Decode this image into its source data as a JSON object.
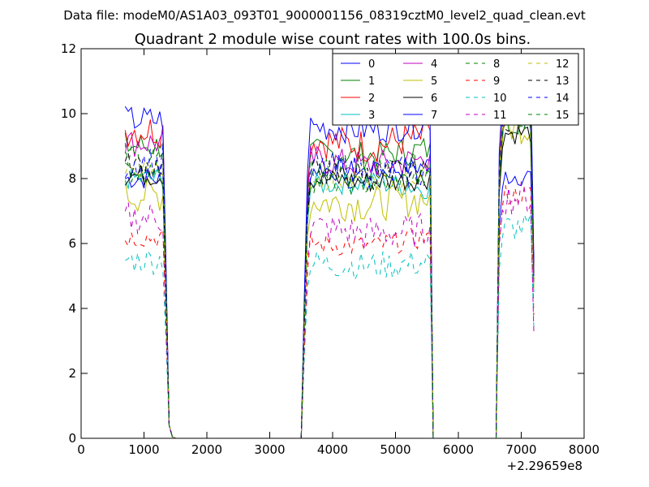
{
  "chart_data": {
    "type": "line",
    "suptitle": "Data file: modeM0/AS1A03_093T01_9000001156_08319cztM0_level2_quad_clean.evt",
    "title": "Quadrant 2 module wise count rates with 100.0s bins.",
    "xlabel": "",
    "ylabel": "",
    "x_offset_label": "+2.29659e8",
    "xlim": [
      0,
      8000
    ],
    "ylim": [
      0,
      12
    ],
    "x_ticks": [
      "0",
      "1000",
      "2000",
      "3000",
      "4000",
      "5000",
      "6000",
      "7000",
      "8000"
    ],
    "y_ticks": [
      "0",
      "2",
      "4",
      "6",
      "8",
      "10",
      "12"
    ],
    "grid": false,
    "legend_position": "top-right",
    "legend_columns": 4,
    "series": [
      {
        "name": "0",
        "color": "#0000ff",
        "dash": "solid",
        "active": [
          8.0,
          8.3,
          8.2,
          8.4,
          8.1
        ],
        "end": 5.3
      },
      {
        "name": "1",
        "color": "#008000",
        "dash": "solid",
        "active": [
          9.0,
          8.8,
          8.7,
          8.9,
          9.8
        ],
        "end": 5.0
      },
      {
        "name": "2",
        "color": "#ff0000",
        "dash": "solid",
        "active": [
          9.5,
          9.2,
          9.0,
          9.3,
          10.5
        ],
        "end": 5.2
      },
      {
        "name": "3",
        "color": "#00bfbf",
        "dash": "solid",
        "active": [
          8.0,
          7.8,
          7.9,
          7.7,
          10.2
        ],
        "end": 4.5
      },
      {
        "name": "4",
        "color": "#bf00bf",
        "dash": "solid",
        "active": [
          9.1,
          8.6,
          8.4,
          8.6,
          10.0
        ],
        "end": 4.8
      },
      {
        "name": "5",
        "color": "#bfbf00",
        "dash": "solid",
        "active": [
          7.5,
          7.3,
          7.2,
          7.4,
          9.6
        ],
        "end": 4.6
      },
      {
        "name": "6",
        "color": "#000000",
        "dash": "solid",
        "active": [
          8.1,
          8.0,
          7.9,
          8.0,
          9.4
        ],
        "end": 5.4
      },
      {
        "name": "7",
        "color": "#0000ff",
        "dash": "solid",
        "active": [
          9.8,
          9.6,
          9.5,
          9.7,
          11.0
        ],
        "end": 5.5
      },
      {
        "name": "8",
        "color": "#008000",
        "dash": "dashed",
        "active": [
          8.6,
          8.3,
          8.2,
          8.3,
          10.0
        ],
        "end": 5.0
      },
      {
        "name": "9",
        "color": "#ff0000",
        "dash": "dashed",
        "active": [
          6.2,
          6.0,
          5.9,
          6.2,
          7.5
        ],
        "end": 3.8
      },
      {
        "name": "10",
        "color": "#00bfbf",
        "dash": "dashed",
        "active": [
          5.5,
          5.4,
          5.3,
          5.4,
          6.5
        ],
        "end": 3.4
      },
      {
        "name": "11",
        "color": "#bf00bf",
        "dash": "dashed",
        "active": [
          6.8,
          6.5,
          6.3,
          6.4,
          7.4
        ],
        "end": 3.3
      },
      {
        "name": "12",
        "color": "#bfbf00",
        "dash": "dashed",
        "active": [
          8.3,
          8.0,
          7.9,
          8.1,
          10.2
        ],
        "end": 4.9
      },
      {
        "name": "13",
        "color": "#000000",
        "dash": "dashed",
        "active": [
          8.4,
          8.2,
          8.1,
          8.2,
          9.9
        ],
        "end": 5.1
      },
      {
        "name": "14",
        "color": "#0000ff",
        "dash": "dashed",
        "active": [
          8.5,
          8.3,
          8.2,
          8.2,
          10.1
        ],
        "end": 5.0
      },
      {
        "name": "15",
        "color": "#008000",
        "dash": "dashed",
        "active": [
          8.2,
          7.9,
          7.8,
          8.0,
          9.8
        ],
        "end": 4.8
      }
    ]
  }
}
